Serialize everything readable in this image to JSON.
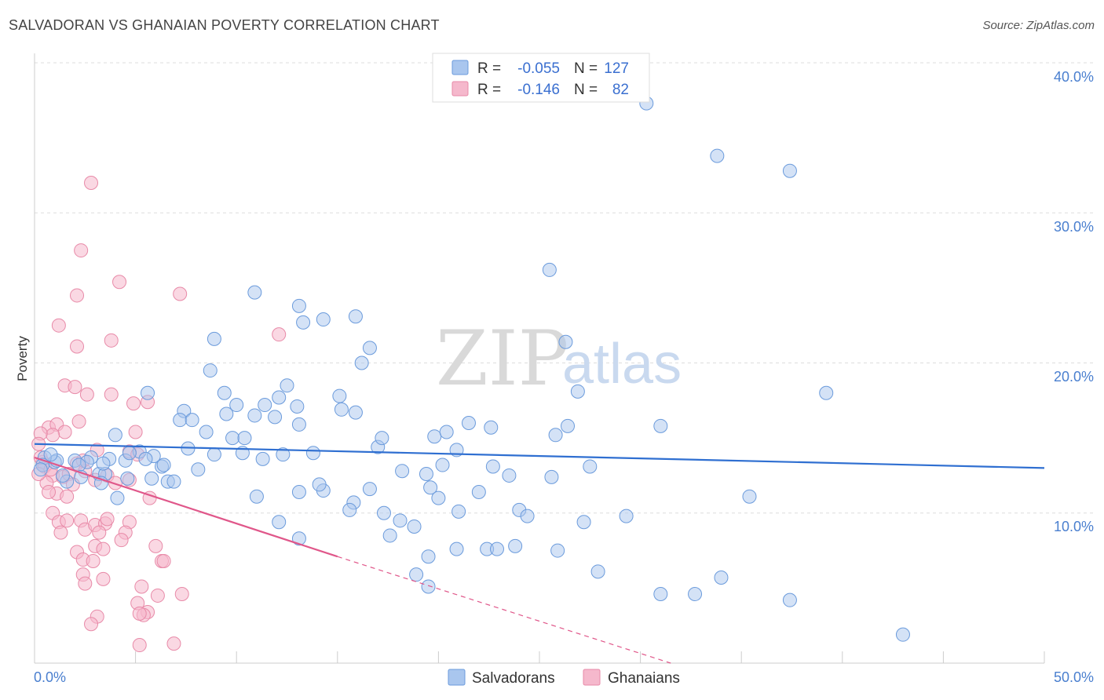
{
  "header": {
    "title": "SALVADORAN VS GHANAIAN POVERTY CORRELATION CHART",
    "source": "Source: ZipAtlas.com"
  },
  "watermark": {
    "zip": "ZIP",
    "atlas": "atlas"
  },
  "legend_top": {
    "rows": [
      {
        "r_label": "R =",
        "r_value": "-0.055",
        "n_label": "N =",
        "n_value": "127"
      },
      {
        "r_label": "R =",
        "r_value": "-0.146",
        "n_label": "N =",
        "n_value": "82"
      }
    ]
  },
  "legend_bottom": {
    "items": [
      "Salvadorans",
      "Ghanaians"
    ]
  },
  "colors": {
    "blue_fill": "#a9c6ee",
    "blue_stroke": "#6b9bdc",
    "blue_line": "#2f6fd1",
    "pink_fill": "#f5b8cc",
    "pink_stroke": "#e88aa8",
    "pink_line": "#e0578a",
    "grid": "#dddddd",
    "tick_text": "#4a7fcf"
  },
  "chart_data": {
    "type": "scatter",
    "title": "SALVADORAN VS GHANAIAN POVERTY CORRELATION CHART",
    "xlabel": "",
    "ylabel": "Poverty",
    "xlim": [
      0,
      50
    ],
    "ylim": [
      0,
      40
    ],
    "x_tick_labels": [
      "0.0%",
      "50.0%"
    ],
    "y_tick_labels": [
      "10.0%",
      "20.0%",
      "30.0%",
      "40.0%"
    ],
    "y_ticks": [
      10,
      20,
      30,
      40
    ],
    "grid": true,
    "legend_placement": "top-center",
    "series": [
      {
        "name": "Salvadorans",
        "R": -0.055,
        "N": 127,
        "trend": {
          "x": [
            0,
            50
          ],
          "y": [
            14.6,
            13.0
          ],
          "dashed_from": null
        },
        "points": [
          [
            30.3,
            37.3
          ],
          [
            33.8,
            33.8
          ],
          [
            37.4,
            32.8
          ],
          [
            25.5,
            26.2
          ],
          [
            26.3,
            21.4
          ],
          [
            26.9,
            18.1
          ],
          [
            26.4,
            15.8
          ],
          [
            25.8,
            15.2
          ],
          [
            31.0,
            15.8
          ],
          [
            39.2,
            18.0
          ],
          [
            35.4,
            11.1
          ],
          [
            10.9,
            24.7
          ],
          [
            13.1,
            23.8
          ],
          [
            14.3,
            22.9
          ],
          [
            13.3,
            22.7
          ],
          [
            15.9,
            23.1
          ],
          [
            16.6,
            21.0
          ],
          [
            16.2,
            20.0
          ],
          [
            8.9,
            21.6
          ],
          [
            8.7,
            19.5
          ],
          [
            5.6,
            18.0
          ],
          [
            9.4,
            18.0
          ],
          [
            10.0,
            17.2
          ],
          [
            11.4,
            17.2
          ],
          [
            12.1,
            17.7
          ],
          [
            12.5,
            18.5
          ],
          [
            11.9,
            16.4
          ],
          [
            13.0,
            17.1
          ],
          [
            15.1,
            17.8
          ],
          [
            15.2,
            16.9
          ],
          [
            15.9,
            16.7
          ],
          [
            7.4,
            16.8
          ],
          [
            7.2,
            16.2
          ],
          [
            7.8,
            16.2
          ],
          [
            9.5,
            16.6
          ],
          [
            10.9,
            16.5
          ],
          [
            13.1,
            15.9
          ],
          [
            4.0,
            15.2
          ],
          [
            8.5,
            15.4
          ],
          [
            9.8,
            15.0
          ],
          [
            10.4,
            15.0
          ],
          [
            10.3,
            14.0
          ],
          [
            11.3,
            13.6
          ],
          [
            12.3,
            13.9
          ],
          [
            13.8,
            14.0
          ],
          [
            17.0,
            14.4
          ],
          [
            17.2,
            15.0
          ],
          [
            19.8,
            15.1
          ],
          [
            20.4,
            15.4
          ],
          [
            21.5,
            16.0
          ],
          [
            22.6,
            15.7
          ],
          [
            20.9,
            14.2
          ],
          [
            20.2,
            13.2
          ],
          [
            19.4,
            12.6
          ],
          [
            18.2,
            12.8
          ],
          [
            19.6,
            11.7
          ],
          [
            21.0,
            10.1
          ],
          [
            20.0,
            11.0
          ],
          [
            22.0,
            11.4
          ],
          [
            22.7,
            13.1
          ],
          [
            23.5,
            12.5
          ],
          [
            24.0,
            10.2
          ],
          [
            24.4,
            9.8
          ],
          [
            16.6,
            11.6
          ],
          [
            15.8,
            10.7
          ],
          [
            15.6,
            10.2
          ],
          [
            14.3,
            11.5
          ],
          [
            14.1,
            11.9
          ],
          [
            13.1,
            11.4
          ],
          [
            11.0,
            11.1
          ],
          [
            12.1,
            9.4
          ],
          [
            13.1,
            8.3
          ],
          [
            17.6,
            8.5
          ],
          [
            17.3,
            10.0
          ],
          [
            18.1,
            9.5
          ],
          [
            18.8,
            9.1
          ],
          [
            19.5,
            7.1
          ],
          [
            20.9,
            7.6
          ],
          [
            22.4,
            7.6
          ],
          [
            22.9,
            7.6
          ],
          [
            23.8,
            7.8
          ],
          [
            25.9,
            7.5
          ],
          [
            27.2,
            9.4
          ],
          [
            29.3,
            9.8
          ],
          [
            25.6,
            12.4
          ],
          [
            27.5,
            13.1
          ],
          [
            31.0,
            4.6
          ],
          [
            32.7,
            4.6
          ],
          [
            34.0,
            5.7
          ],
          [
            37.4,
            4.2
          ],
          [
            43.0,
            1.9
          ],
          [
            18.9,
            5.9
          ],
          [
            19.5,
            5.1
          ],
          [
            27.9,
            6.1
          ],
          [
            1.0,
            13.4
          ],
          [
            2.0,
            13.5
          ],
          [
            2.8,
            13.7
          ],
          [
            3.2,
            12.6
          ],
          [
            3.7,
            13.6
          ],
          [
            4.5,
            13.5
          ],
          [
            5.2,
            14.1
          ],
          [
            5.9,
            13.8
          ],
          [
            6.3,
            13.1
          ],
          [
            6.6,
            12.1
          ],
          [
            5.8,
            12.3
          ],
          [
            5.5,
            13.6
          ],
          [
            4.7,
            14.0
          ],
          [
            4.6,
            12.3
          ],
          [
            3.5,
            12.6
          ],
          [
            2.6,
            13.4
          ],
          [
            1.6,
            12.1
          ],
          [
            1.1,
            13.5
          ],
          [
            0.5,
            13.7
          ],
          [
            0.4,
            13.2
          ],
          [
            0.3,
            12.9
          ],
          [
            0.8,
            13.9
          ],
          [
            1.4,
            12.5
          ],
          [
            2.2,
            13.2
          ],
          [
            3.3,
            12.0
          ],
          [
            4.1,
            11.0
          ],
          [
            6.4,
            13.2
          ],
          [
            6.9,
            12.1
          ],
          [
            8.1,
            12.9
          ],
          [
            8.9,
            13.9
          ],
          [
            7.6,
            14.3
          ],
          [
            3.4,
            13.3
          ],
          [
            2.3,
            12.4
          ]
        ]
      },
      {
        "name": "Ghanaians",
        "R": -0.146,
        "N": 82,
        "trend": {
          "x": [
            0,
            15
          ],
          "y": [
            13.7,
            7.1
          ],
          "dashed_to": [
            31.5,
            0.0
          ]
        },
        "points": [
          [
            2.8,
            32.0
          ],
          [
            2.3,
            27.5
          ],
          [
            4.2,
            25.4
          ],
          [
            2.1,
            24.5
          ],
          [
            7.2,
            24.6
          ],
          [
            1.2,
            22.5
          ],
          [
            3.8,
            21.5
          ],
          [
            2.1,
            21.1
          ],
          [
            12.1,
            21.9
          ],
          [
            1.5,
            18.5
          ],
          [
            2.0,
            18.4
          ],
          [
            2.6,
            17.9
          ],
          [
            3.8,
            17.9
          ],
          [
            4.9,
            17.3
          ],
          [
            5.6,
            17.4
          ],
          [
            0.7,
            15.7
          ],
          [
            1.1,
            15.9
          ],
          [
            1.5,
            15.4
          ],
          [
            2.2,
            16.1
          ],
          [
            0.9,
            15.2
          ],
          [
            0.3,
            15.3
          ],
          [
            0.2,
            14.6
          ],
          [
            5.0,
            15.4
          ],
          [
            4.7,
            14.1
          ],
          [
            5.1,
            13.9
          ],
          [
            0.4,
            13.4
          ],
          [
            0.5,
            13.1
          ],
          [
            0.9,
            12.5
          ],
          [
            1.4,
            12.4
          ],
          [
            1.7,
            12.6
          ],
          [
            2.1,
            13.3
          ],
          [
            2.5,
            12.8
          ],
          [
            3.0,
            12.2
          ],
          [
            3.6,
            12.5
          ],
          [
            4.0,
            12.0
          ],
          [
            1.9,
            11.9
          ],
          [
            0.6,
            12.0
          ],
          [
            1.1,
            11.3
          ],
          [
            0.7,
            11.4
          ],
          [
            1.6,
            11.1
          ],
          [
            4.7,
            12.2
          ],
          [
            5.7,
            11.0
          ],
          [
            0.9,
            10.0
          ],
          [
            1.2,
            9.4
          ],
          [
            1.6,
            9.5
          ],
          [
            2.3,
            9.5
          ],
          [
            2.5,
            8.9
          ],
          [
            3.0,
            9.2
          ],
          [
            3.5,
            9.3
          ],
          [
            3.6,
            9.6
          ],
          [
            4.7,
            9.4
          ],
          [
            1.3,
            8.7
          ],
          [
            3.2,
            8.7
          ],
          [
            4.5,
            8.7
          ],
          [
            4.3,
            8.2
          ],
          [
            6.0,
            7.8
          ],
          [
            3.0,
            7.8
          ],
          [
            3.4,
            7.6
          ],
          [
            2.1,
            7.4
          ],
          [
            2.4,
            6.9
          ],
          [
            2.9,
            6.8
          ],
          [
            6.3,
            6.8
          ],
          [
            6.4,
            6.8
          ],
          [
            2.4,
            5.9
          ],
          [
            2.5,
            5.3
          ],
          [
            3.4,
            5.6
          ],
          [
            5.3,
            5.1
          ],
          [
            6.1,
            4.5
          ],
          [
            5.1,
            4.0
          ],
          [
            5.6,
            3.4
          ],
          [
            5.4,
            3.2
          ],
          [
            3.1,
            3.1
          ],
          [
            5.2,
            3.3
          ],
          [
            2.8,
            2.6
          ],
          [
            5.2,
            1.2
          ],
          [
            6.9,
            1.3
          ],
          [
            7.3,
            4.6
          ],
          [
            0.3,
            13.7
          ],
          [
            0.2,
            12.6
          ],
          [
            0.8,
            12.9
          ],
          [
            2.4,
            13.5
          ],
          [
            3.1,
            14.2
          ]
        ]
      }
    ]
  }
}
